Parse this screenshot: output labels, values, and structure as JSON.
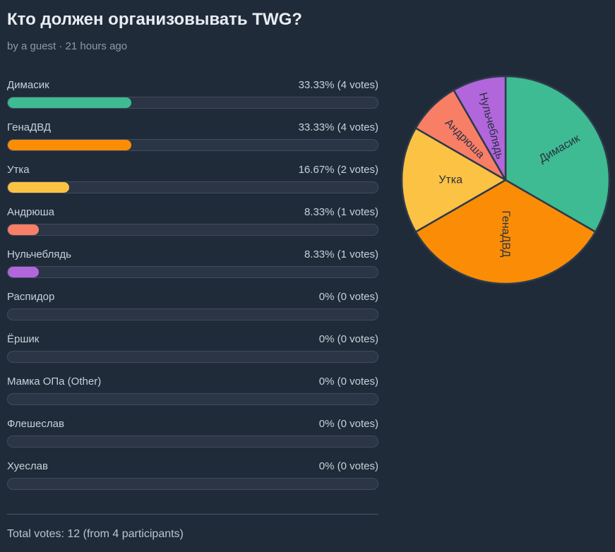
{
  "page": {
    "title": "Кто должен организовывать TWG?",
    "byline": "by a guest · 21 hours ago",
    "footer": "Total votes: 12 (from 4 participants)"
  },
  "options": [
    {
      "label": "Димасик",
      "result": "33.33% (4 votes)",
      "percent": 33.33,
      "color": "#3ebb92"
    },
    {
      "label": "ГенаДВД",
      "result": "33.33% (4 votes)",
      "percent": 33.33,
      "color": "#fb8d06"
    },
    {
      "label": "Утка",
      "result": "16.67% (2 votes)",
      "percent": 16.67,
      "color": "#fcc244"
    },
    {
      "label": "Андрюша",
      "result": "8.33% (1 votes)",
      "percent": 8.33,
      "color": "#f97e66"
    },
    {
      "label": "Нульчеблядь",
      "result": "8.33% (1 votes)",
      "percent": 8.33,
      "color": "#b266db"
    },
    {
      "label": "Распидор",
      "result": "0% (0 votes)",
      "percent": 0,
      "color": null
    },
    {
      "label": "Ёршик",
      "result": "0% (0 votes)",
      "percent": 0,
      "color": null
    },
    {
      "label": "Мамка ОПа (Other)",
      "result": "0% (0 votes)",
      "percent": 0,
      "color": null
    },
    {
      "label": "Флешеслав",
      "result": "0% (0 votes)",
      "percent": 0,
      "color": null
    },
    {
      "label": "Хуеслав",
      "result": "0% (0 votes)",
      "percent": 0,
      "color": null
    }
  ],
  "chart_data": {
    "type": "pie",
    "title": "Кто должен организовывать TWG?",
    "categories": [
      "Димасик",
      "ГенаДВД",
      "Утка",
      "Андрюша",
      "Нульчеблядь",
      "Распидор",
      "Ёршик",
      "Мамка ОПа (Other)",
      "Флешеслав",
      "Хуеслав"
    ],
    "votes": [
      4,
      4,
      2,
      1,
      1,
      0,
      0,
      0,
      0,
      0
    ],
    "percents": [
      33.33,
      33.33,
      16.67,
      8.33,
      8.33,
      0,
      0,
      0,
      0,
      0
    ],
    "total_votes": 12,
    "participants": 4,
    "start_angle_deg": 0,
    "direction": "clockwise",
    "stroke_color": "#2e3a4b",
    "label_color": "#273242",
    "slices": [
      {
        "label": "Димасик",
        "percent": 33.33,
        "color": "#3ebb92",
        "label_r": 0.6
      },
      {
        "label": "ГенаДВД",
        "percent": 33.33,
        "color": "#fb8d06",
        "label_r": 0.52
      },
      {
        "label": "Утка",
        "percent": 16.67,
        "color": "#fcc244",
        "label_r": 0.53
      },
      {
        "label": "Андрюша",
        "percent": 8.33,
        "color": "#f97e66",
        "label_r": 0.56
      },
      {
        "label": "Нульчеблядь",
        "percent": 8.33,
        "color": "#b266db",
        "label_r": 0.54
      }
    ]
  }
}
